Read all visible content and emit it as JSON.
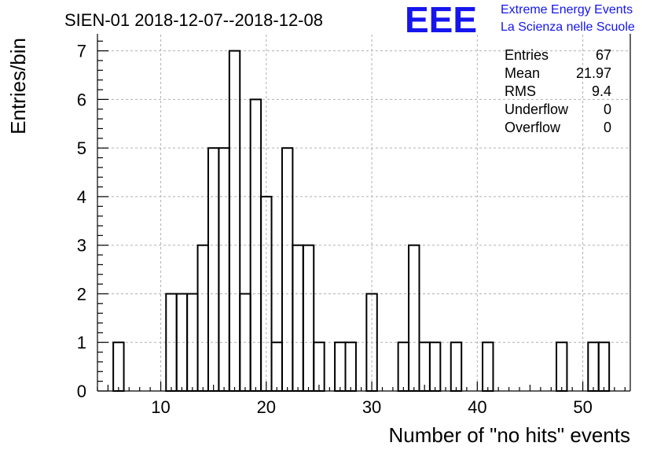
{
  "colors": {
    "bar_stroke": "#000000",
    "logo": "#1515ee",
    "grid": "#b0b0b0"
  },
  "logo": {
    "mark": "EEE",
    "line1": "Extreme Energy Events",
    "line2": "La Scienza nelle Scuole"
  },
  "stats": {
    "rows": [
      {
        "label": "Entries",
        "value": "67"
      },
      {
        "label": "Mean",
        "value": "21.97"
      },
      {
        "label": "RMS",
        "value": "9.4"
      },
      {
        "label": "Underflow",
        "value": "0"
      },
      {
        "label": "Overflow",
        "value": "0"
      }
    ]
  },
  "chart_data": {
    "type": "bar",
    "title": "SIEN-01 2018-12-07--2018-12-08",
    "xlabel": "Number of \"no hits\" events",
    "ylabel": "Entries/bin",
    "xlim": [
      4,
      54.5
    ],
    "ylim": [
      0,
      7.35
    ],
    "bin_width": 1,
    "x_ticks": [
      10,
      20,
      30,
      40,
      50
    ],
    "y_ticks": [
      0,
      1,
      2,
      3,
      4,
      5,
      6,
      7
    ],
    "grid": true,
    "stats_box_position": "top-right",
    "bins": [
      {
        "x": 6,
        "count": 1
      },
      {
        "x": 11,
        "count": 2
      },
      {
        "x": 12,
        "count": 2
      },
      {
        "x": 13,
        "count": 2
      },
      {
        "x": 14,
        "count": 3
      },
      {
        "x": 15,
        "count": 5
      },
      {
        "x": 16,
        "count": 5
      },
      {
        "x": 17,
        "count": 7
      },
      {
        "x": 18,
        "count": 2
      },
      {
        "x": 19,
        "count": 6
      },
      {
        "x": 20,
        "count": 4
      },
      {
        "x": 21,
        "count": 1
      },
      {
        "x": 22,
        "count": 5
      },
      {
        "x": 23,
        "count": 3
      },
      {
        "x": 24,
        "count": 3
      },
      {
        "x": 25,
        "count": 1
      },
      {
        "x": 27,
        "count": 1
      },
      {
        "x": 28,
        "count": 1
      },
      {
        "x": 30,
        "count": 2
      },
      {
        "x": 33,
        "count": 1
      },
      {
        "x": 34,
        "count": 3
      },
      {
        "x": 35,
        "count": 1
      },
      {
        "x": 36,
        "count": 1
      },
      {
        "x": 38,
        "count": 1
      },
      {
        "x": 41,
        "count": 1
      },
      {
        "x": 48,
        "count": 1
      },
      {
        "x": 51,
        "count": 1
      },
      {
        "x": 52,
        "count": 1
      }
    ]
  }
}
